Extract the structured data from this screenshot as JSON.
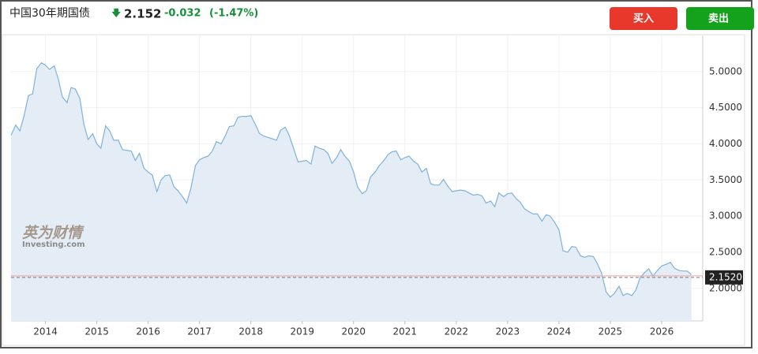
{
  "header": {
    "title": "中国30年期国债",
    "arrow": "🡇",
    "price": 2.152,
    "change": -0.032,
    "change_pct": "(-1.47%)"
  },
  "buttons": {
    "buy": "买入",
    "sell": "卖出"
  },
  "watermark": {
    "cn": "英为财情",
    "en": "Investing.com"
  },
  "chart_data": {
    "type": "area",
    "color": "#7fb2da",
    "fill": "#e4edf6",
    "grid": true,
    "xlim": [
      2013.33,
      2026.8
    ],
    "xticks": [
      2014,
      2015,
      2016,
      2017,
      2018,
      2019,
      2020,
      2021,
      2022,
      2023,
      2024,
      2025,
      2026
    ],
    "ylim": [
      1.55,
      5.5
    ],
    "yticks": [
      {
        "value": 2,
        "label": "2.0000"
      },
      {
        "value": 2.5,
        "label": "2.5000"
      },
      {
        "value": 3,
        "label": "3.0000"
      },
      {
        "value": 3.5,
        "label": "3.5000"
      },
      {
        "value": 4,
        "label": "4.0000"
      },
      {
        "value": 4.5,
        "label": "4.5000"
      },
      {
        "value": 5,
        "label": "5.0000"
      }
    ],
    "last": {
      "value": 2.152,
      "label": "2.1520"
    },
    "x": [
      2013.33,
      2013.42,
      2013.5,
      2013.58,
      2013.67,
      2013.75,
      2013.83,
      2013.92,
      2014,
      2014.08,
      2014.17,
      2014.25,
      2014.33,
      2014.42,
      2014.5,
      2014.58,
      2014.67,
      2014.75,
      2014.83,
      2014.92,
      2015,
      2015.08,
      2015.17,
      2015.25,
      2015.33,
      2015.42,
      2015.5,
      2015.58,
      2015.67,
      2015.75,
      2015.83,
      2015.92,
      2016,
      2016.08,
      2016.17,
      2016.25,
      2016.33,
      2016.42,
      2016.5,
      2016.58,
      2016.67,
      2016.75,
      2016.83,
      2016.92,
      2017,
      2017.08,
      2017.17,
      2017.25,
      2017.33,
      2017.42,
      2017.5,
      2017.58,
      2017.67,
      2017.75,
      2017.83,
      2017.92,
      2018,
      2018.08,
      2018.17,
      2018.25,
      2018.33,
      2018.42,
      2018.5,
      2018.58,
      2018.67,
      2018.75,
      2018.83,
      2018.92,
      2019,
      2019.08,
      2019.17,
      2019.25,
      2019.33,
      2019.42,
      2019.5,
      2019.58,
      2019.67,
      2019.75,
      2019.83,
      2019.92,
      2020,
      2020.08,
      2020.17,
      2020.25,
      2020.33,
      2020.42,
      2020.5,
      2020.58,
      2020.67,
      2020.75,
      2020.83,
      2020.92,
      2021,
      2021.08,
      2021.17,
      2021.25,
      2021.33,
      2021.42,
      2021.5,
      2021.58,
      2021.67,
      2021.75,
      2021.83,
      2021.92,
      2022,
      2022.08,
      2022.17,
      2022.25,
      2022.33,
      2022.42,
      2022.5,
      2022.58,
      2022.67,
      2022.75,
      2022.83,
      2022.92,
      2023,
      2023.08,
      2023.17,
      2023.25,
      2023.33,
      2023.42,
      2023.5,
      2023.58,
      2023.67,
      2023.75,
      2023.83,
      2023.92,
      2024,
      2024.08,
      2024.17,
      2024.25,
      2024.33,
      2024.42,
      2024.5,
      2024.58,
      2024.67,
      2024.75,
      2024.83,
      2024.92,
      2025,
      2025.08,
      2025.17,
      2025.25,
      2025.33,
      2025.42,
      2025.5,
      2025.58,
      2025.67,
      2025.75,
      2025.83,
      2025.92,
      2026,
      2026.08,
      2026.17,
      2026.25,
      2026.33,
      2026.42,
      2026.5,
      2026.58
    ],
    "values": [
      4.12,
      4.26,
      4.18,
      4.38,
      4.67,
      4.69,
      5.04,
      5.12,
      5.09,
      5.03,
      5.08,
      4.9,
      4.65,
      4.57,
      4.78,
      4.76,
      4.63,
      4.27,
      4.06,
      4.14,
      4.0,
      3.94,
      4.25,
      4.18,
      4.05,
      4.05,
      3.92,
      3.91,
      3.9,
      3.77,
      3.87,
      3.66,
      3.61,
      3.57,
      3.34,
      3.5,
      3.56,
      3.57,
      3.41,
      3.35,
      3.27,
      3.18,
      3.38,
      3.7,
      3.78,
      3.81,
      3.83,
      3.9,
      4.03,
      4.0,
      4.11,
      4.24,
      4.25,
      4.37,
      4.38,
      4.38,
      4.39,
      4.28,
      4.14,
      4.11,
      4.09,
      4.07,
      4.05,
      4.19,
      4.23,
      4.11,
      3.94,
      3.75,
      3.76,
      3.77,
      3.72,
      3.97,
      3.94,
      3.92,
      3.87,
      3.73,
      3.81,
      3.92,
      3.83,
      3.76,
      3.61,
      3.4,
      3.31,
      3.35,
      3.54,
      3.61,
      3.7,
      3.76,
      3.85,
      3.89,
      3.9,
      3.78,
      3.81,
      3.83,
      3.76,
      3.72,
      3.61,
      3.66,
      3.45,
      3.43,
      3.43,
      3.51,
      3.42,
      3.34,
      3.35,
      3.36,
      3.35,
      3.32,
      3.29,
      3.3,
      3.28,
      3.18,
      3.21,
      3.13,
      3.32,
      3.27,
      3.31,
      3.32,
      3.24,
      3.19,
      3.1,
      3.06,
      3.03,
      3.03,
      2.93,
      3.02,
      3.0,
      2.91,
      2.81,
      2.52,
      2.5,
      2.58,
      2.57,
      2.45,
      2.43,
      2.45,
      2.44,
      2.34,
      2.21,
      1.95,
      1.88,
      1.93,
      2.03,
      1.9,
      1.93,
      1.9,
      1.98,
      2.15,
      2.22,
      2.27,
      2.17,
      2.25,
      2.31,
      2.33,
      2.36,
      2.28,
      2.25,
      2.24,
      2.24,
      2.19
    ]
  }
}
